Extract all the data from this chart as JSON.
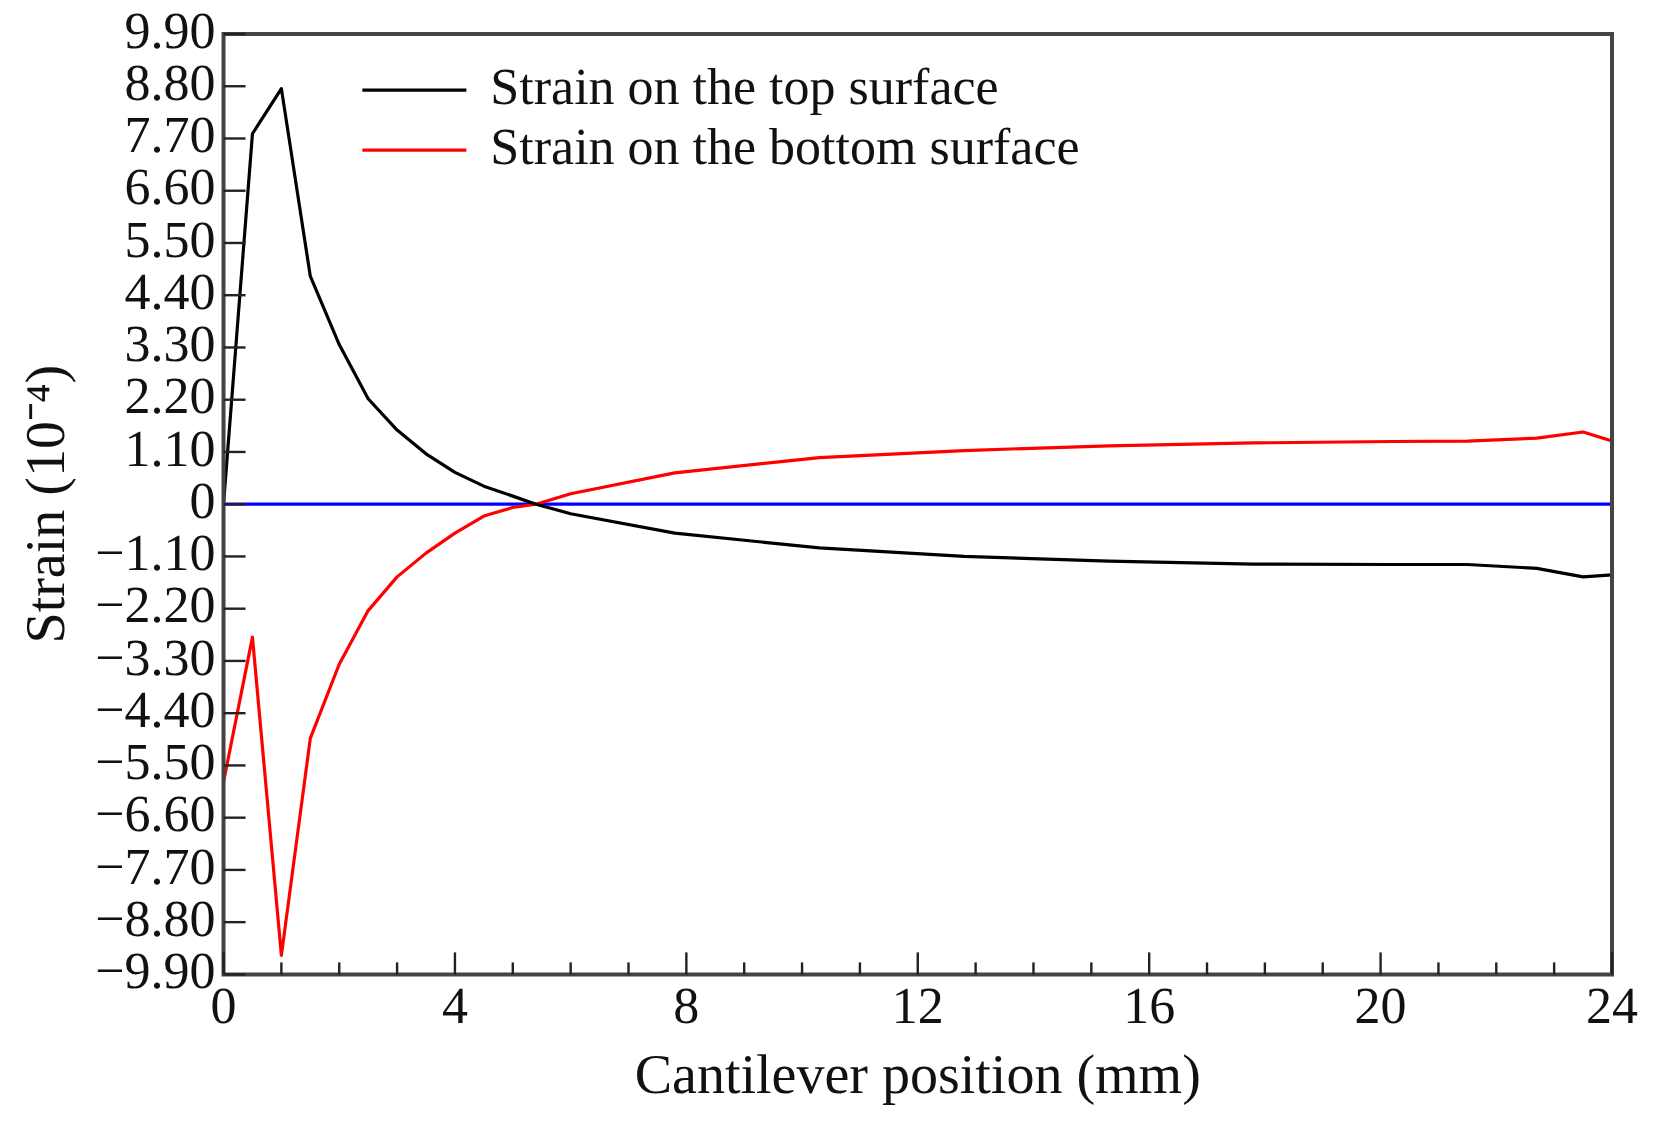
{
  "chart_data": {
    "type": "line",
    "xlabel": "Cantilever position (mm)",
    "ylabel": "Strain (10⁻⁴)",
    "xlim": [
      0,
      24
    ],
    "xticks": [
      0,
      {
        "value": 1,
        "label": null
      },
      {
        "value": 2,
        "label": null
      },
      {
        "value": 3,
        "label": null
      },
      4,
      {
        "value": 5,
        "label": null
      },
      {
        "value": 6,
        "label": null
      },
      {
        "value": 7,
        "label": null
      },
      8,
      {
        "value": 9,
        "label": null
      },
      {
        "value": 10,
        "label": null
      },
      {
        "value": 11,
        "label": null
      },
      12,
      {
        "value": 13,
        "label": null
      },
      {
        "value": 14,
        "label": null
      },
      {
        "value": 15,
        "label": null
      },
      16,
      {
        "value": 17,
        "label": null
      },
      {
        "value": 18,
        "label": null
      },
      {
        "value": 19,
        "label": null
      },
      20,
      {
        "value": 21,
        "label": null
      },
      {
        "value": 22,
        "label": null
      },
      {
        "value": 23,
        "label": null
      },
      24
    ],
    "ylim": [
      -9.9,
      9.9
    ],
    "yticks": [
      {
        "value": -9.9,
        "label": "−9.90"
      },
      {
        "value": -8.8,
        "label": "−8.80"
      },
      {
        "value": -7.7,
        "label": "−7.70"
      },
      {
        "value": -6.6,
        "label": "−6.60"
      },
      {
        "value": -5.5,
        "label": "−5.50"
      },
      {
        "value": -4.4,
        "label": "−4.40"
      },
      {
        "value": -3.3,
        "label": "−3.30"
      },
      {
        "value": -2.2,
        "label": "−2.20"
      },
      {
        "value": -1.1,
        "label": "−1.10"
      },
      0,
      {
        "value": 1.1,
        "label": "1.10"
      },
      {
        "value": 2.2,
        "label": "2.20"
      },
      {
        "value": 3.3,
        "label": "3.30"
      },
      {
        "value": 4.4,
        "label": "4.40"
      },
      {
        "value": 5.5,
        "label": "5.50"
      },
      {
        "value": 6.6,
        "label": "6.60"
      },
      {
        "value": 7.7,
        "label": "7.70"
      },
      {
        "value": 8.8,
        "label": "8.80"
      },
      {
        "value": 9.9,
        "label": "9.90"
      }
    ],
    "x": [
      0,
      0.5,
      1,
      1.5,
      2,
      2.5,
      3,
      3.5,
      4,
      4.5,
      5,
      5.4,
      6,
      7.8,
      10.3,
      12.8,
      15.3,
      17.8,
      20.2,
      21.5,
      22.7,
      23.5,
      24
    ],
    "series": [
      {
        "name": "Strain on the top surface",
        "color": "#000000",
        "values": [
          0,
          7.8,
          8.75,
          4.8,
          3.36,
          2.22,
          1.56,
          1.06,
          0.67,
          0.38,
          0.17,
          0,
          -0.2,
          -0.61,
          -0.92,
          -1.1,
          -1.2,
          -1.26,
          -1.27,
          -1.27,
          -1.35,
          -1.53,
          -1.49
        ]
      },
      {
        "name": "Strain on the bottom surface",
        "color": "#ff0000",
        "values": [
          -5.85,
          -2.8,
          -9.5,
          -4.93,
          -3.37,
          -2.24,
          -1.53,
          -1.03,
          -0.61,
          -0.25,
          -0.07,
          0,
          0.22,
          0.66,
          0.98,
          1.13,
          1.23,
          1.29,
          1.32,
          1.33,
          1.39,
          1.52,
          1.33
        ]
      }
    ],
    "ref_lines": [
      {
        "axis": "y",
        "value": 0,
        "color": "#0000ff"
      }
    ],
    "grid": false,
    "legend": "top",
    "marker": "none",
    "line_style": "solid"
  }
}
